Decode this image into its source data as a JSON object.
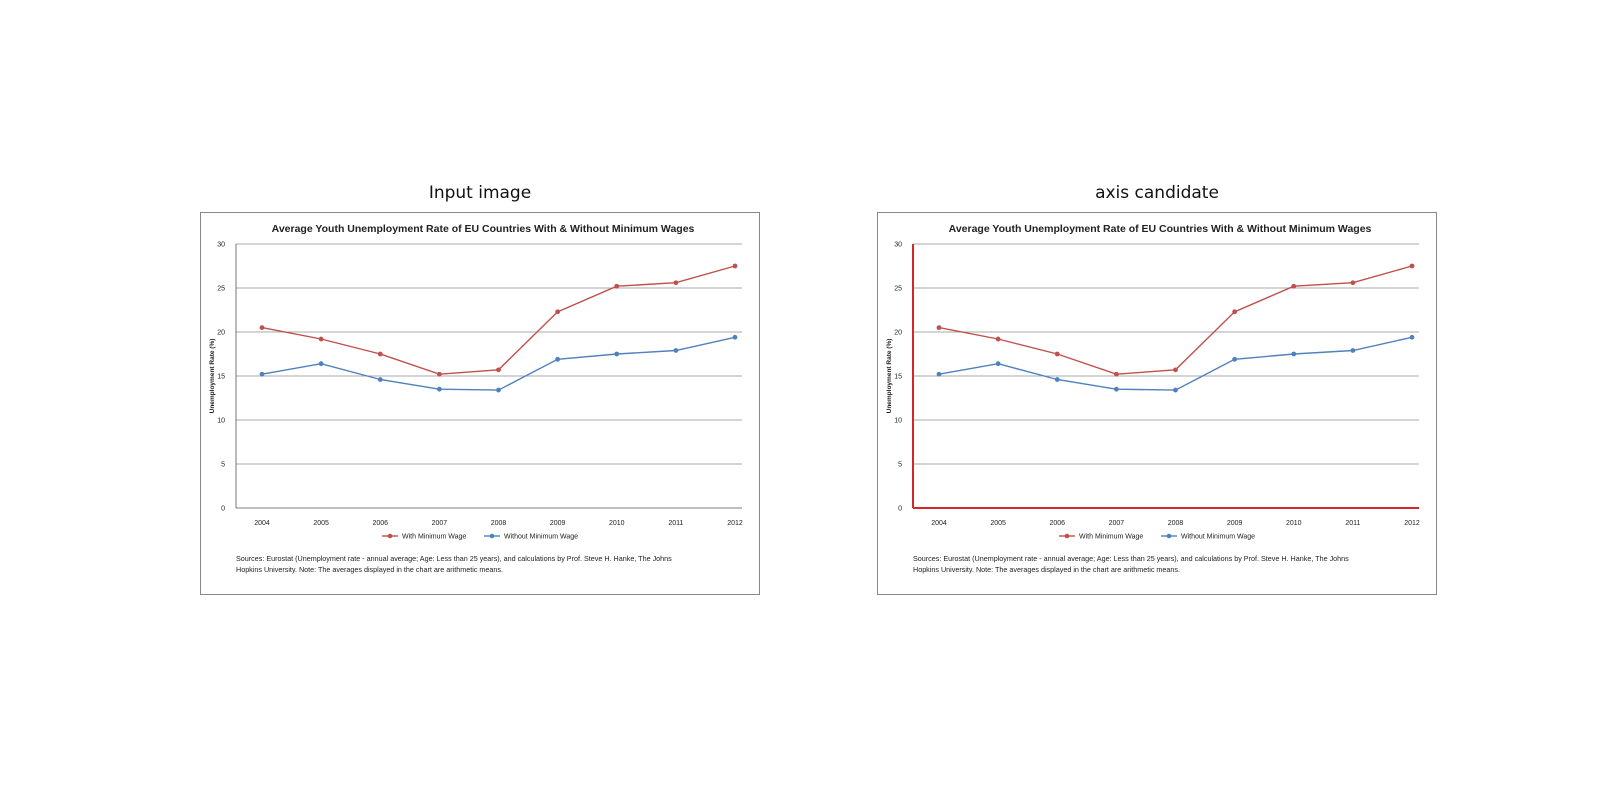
{
  "panels": [
    {
      "caption": "Input image",
      "highlight_axes": false
    },
    {
      "caption": "axis candidate",
      "highlight_axes": true
    }
  ],
  "colors": {
    "with_minimum_wage": "#c0504d",
    "without_minimum_wage": "#4f81bd",
    "axis_highlight": "#d62728",
    "gridline": "#8c8c8c"
  },
  "chart_data": {
    "type": "line",
    "title": "Average Youth Unemployment Rate of EU Countries With & Without Minimum Wages",
    "ylabel": "Unemployment Rate (%)",
    "xlabel": "",
    "categories": [
      "2004",
      "2005",
      "2006",
      "2007",
      "2008",
      "2009",
      "2010",
      "2011",
      "2012"
    ],
    "y_ticks": [
      0,
      5,
      10,
      15,
      20,
      25,
      30
    ],
    "y_tick_labels": [
      "0",
      "5",
      "10",
      "15",
      "20",
      "25",
      "30"
    ],
    "ylim": [
      0,
      30
    ],
    "grid": true,
    "legend_position": "bottom",
    "series": [
      {
        "name": "With Minimum Wage",
        "values": [
          20.5,
          19.2,
          17.5,
          15.2,
          15.7,
          22.3,
          25.2,
          25.6,
          27.5
        ]
      },
      {
        "name": "Without Minimum Wage",
        "values": [
          15.2,
          16.4,
          14.6,
          13.5,
          13.4,
          16.9,
          17.5,
          17.9,
          19.4
        ]
      }
    ],
    "source_lines": [
      "Sources: Eurostat (Unemployment rate - annual average; Age: Less than 25 years), and calculations by Prof. Steve H. Hanke, The Johns",
      "Hopkins University. Note: The averages displayed in the chart are arithmetic means."
    ]
  }
}
